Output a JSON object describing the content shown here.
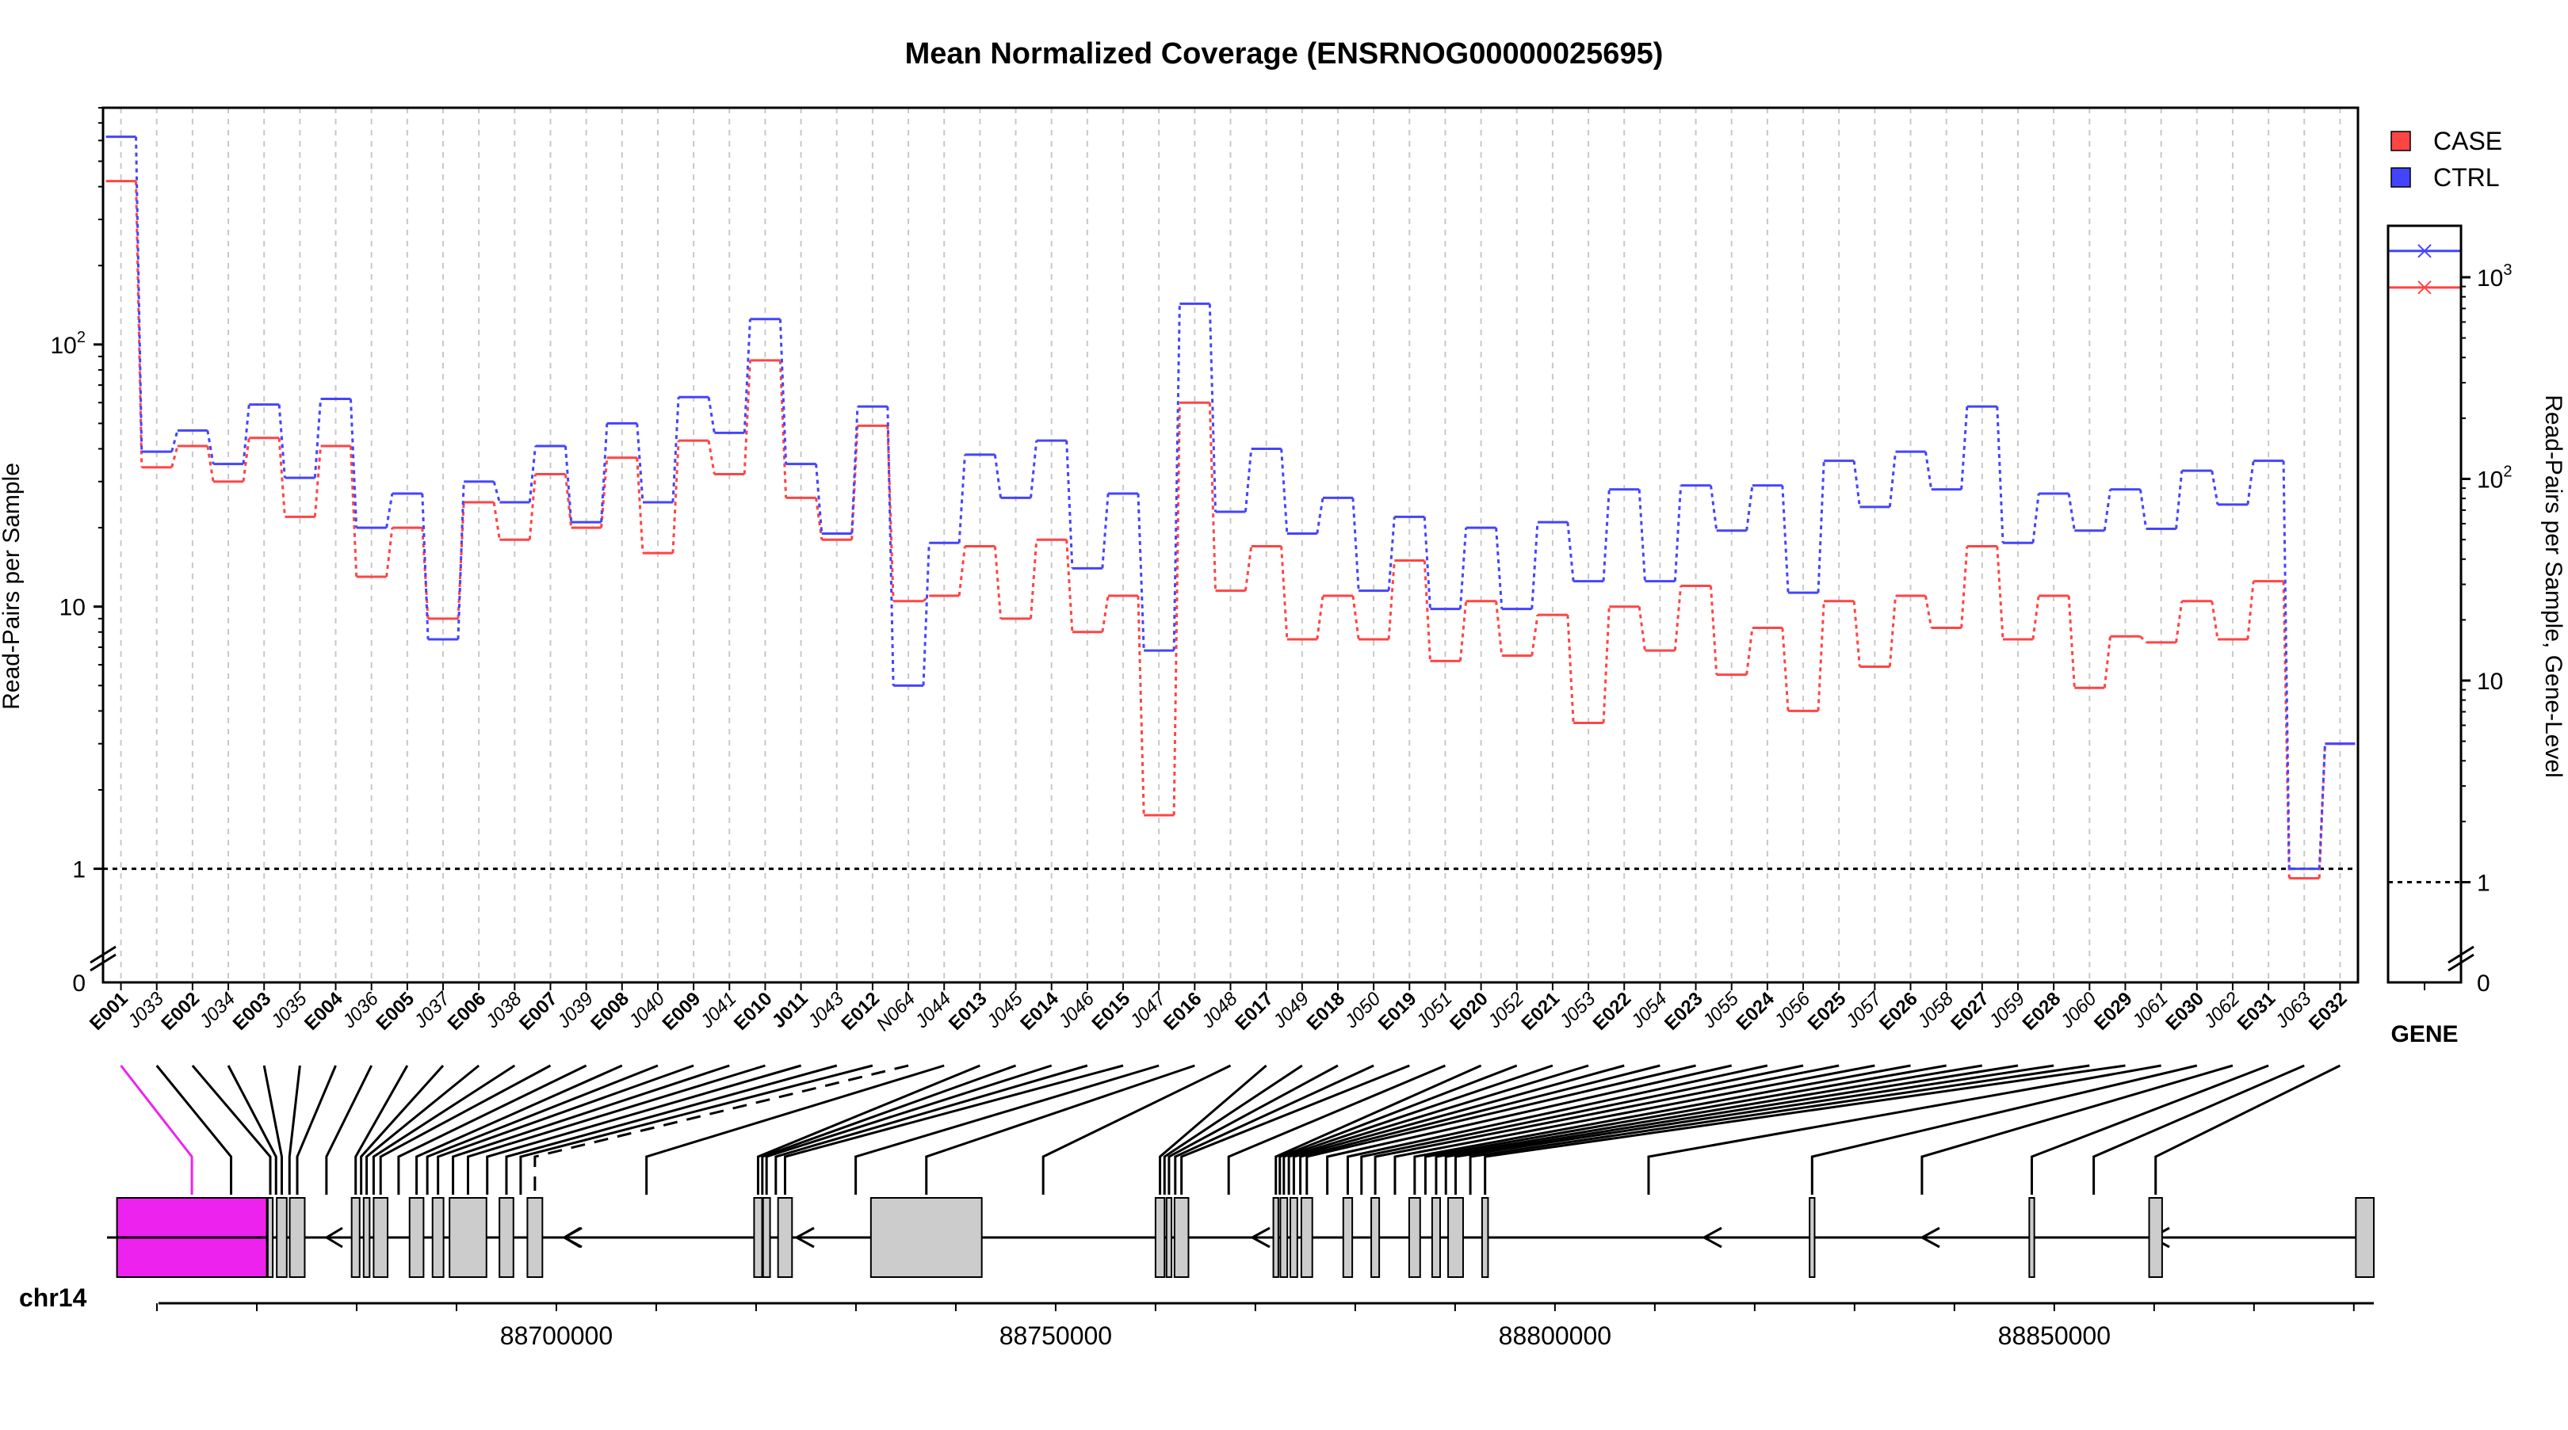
{
  "chart_data": {
    "type": "line",
    "title": "Mean Normalized Coverage (ENSRNOG00000025695)",
    "ylabel": "Read-Pairs per Sample",
    "ylabel_right": "Read-Pairs per Sample, Gene-Level",
    "yscale": "log",
    "ylim": [
      0.6,
      800
    ],
    "y_ticks": [
      {
        "value": 1,
        "label": "1"
      },
      {
        "value": 10,
        "label": "10"
      },
      {
        "value": 100,
        "label": "10",
        "sup": "2"
      }
    ],
    "zero_label": "0",
    "legend": {
      "position": "top-right",
      "entries": [
        {
          "name": "CASE",
          "color": "#ff4444"
        },
        {
          "name": "CTRL",
          "color": "#4444ff"
        }
      ]
    },
    "reference_line": 1,
    "categories": [
      "E001",
      "J033",
      "E002",
      "J034",
      "E003",
      "J035",
      "E004",
      "J036",
      "E005",
      "J037",
      "E006",
      "J038",
      "E007",
      "J039",
      "E008",
      "J040",
      "E009",
      "J041",
      "E010",
      "J011",
      "J043",
      "E012",
      "N064",
      "J044",
      "E013",
      "J045",
      "E014",
      "J046",
      "E015",
      "J047",
      "E016",
      "J048",
      "E017",
      "J049",
      "E018",
      "J050",
      "E019",
      "J051",
      "E020",
      "J052",
      "E021",
      "J053",
      "E022",
      "J054",
      "E023",
      "J055",
      "E024",
      "J056",
      "E025",
      "J057",
      "E026",
      "J058",
      "E027",
      "J059",
      "E028",
      "J060",
      "E029",
      "J061",
      "E030",
      "J062",
      "E031",
      "J063",
      "E032"
    ],
    "category_bold": [
      true,
      false,
      true,
      false,
      true,
      false,
      true,
      false,
      true,
      false,
      true,
      false,
      true,
      false,
      true,
      false,
      true,
      false,
      true,
      true,
      false,
      true,
      false,
      false,
      true,
      false,
      true,
      false,
      true,
      false,
      true,
      false,
      true,
      false,
      true,
      false,
      true,
      false,
      true,
      false,
      true,
      false,
      true,
      false,
      true,
      false,
      true,
      false,
      true,
      false,
      true,
      false,
      true,
      false,
      true,
      false,
      true,
      false,
      true,
      false,
      true,
      false,
      true
    ],
    "series": [
      {
        "name": "CASE",
        "color": "#ff4444",
        "values": [
          420,
          34,
          41,
          30,
          44,
          22,
          41,
          13,
          20,
          9,
          25,
          18,
          32,
          20,
          37,
          16,
          43,
          32,
          87,
          26,
          18,
          49,
          10.5,
          11,
          17,
          9,
          18,
          8,
          11,
          1.6,
          60,
          11.5,
          17,
          7.5,
          11,
          7.5,
          15,
          6.2,
          10.5,
          6.5,
          9.3,
          3.6,
          10,
          6.8,
          12,
          5.5,
          8.3,
          4,
          10.5,
          5.9,
          11,
          8.3,
          17,
          7.5,
          11,
          4.9,
          7.7,
          7.3,
          10.5,
          7.5,
          12.5,
          0.92,
          3
        ]
      },
      {
        "name": "CTRL",
        "color": "#4444ff",
        "values": [
          620,
          39,
          47,
          35,
          59,
          31,
          62,
          20,
          27,
          7.5,
          30,
          25,
          41,
          21,
          50,
          25,
          63,
          46,
          125,
          35,
          19,
          58,
          5,
          17.5,
          38,
          26,
          43,
          14,
          27,
          6.8,
          143,
          23,
          40,
          19,
          26,
          11.5,
          22,
          9.8,
          20,
          9.8,
          21,
          12.5,
          28,
          12.5,
          29,
          19.5,
          29,
          11.3,
          36,
          24,
          39,
          28,
          58,
          17.5,
          27,
          19.5,
          28,
          19.8,
          33,
          24.5,
          36,
          1,
          3
        ]
      }
    ],
    "gene_panel": {
      "label": "GENE",
      "ylim": [
        0.6,
        1800
      ],
      "y_ticks": [
        {
          "value": 1,
          "label": "1"
        },
        {
          "value": 10,
          "label": "10"
        },
        {
          "value": 100,
          "label": "10",
          "sup": "2"
        },
        {
          "value": 1000,
          "label": "10",
          "sup": "3"
        }
      ],
      "zero_label": "0",
      "values": [
        {
          "name": "CASE",
          "value": 890
        },
        {
          "name": "CTRL",
          "value": 1350
        }
      ]
    },
    "genome": {
      "chromosome": "chr14",
      "axis_range": [
        88655000,
        88882000
      ],
      "tick_labels": [
        88700000,
        88750000,
        88800000,
        88850000
      ],
      "exons": [
        [
          88656000,
          88671000,
          true
        ],
        [
          88671100,
          88671600,
          false
        ],
        [
          88672000,
          88673000,
          false
        ],
        [
          88673300,
          88674800,
          false
        ],
        [
          88679500,
          88680300,
          false
        ],
        [
          88680700,
          88681300,
          false
        ],
        [
          88681700,
          88683100,
          false
        ],
        [
          88685300,
          88686700,
          false
        ],
        [
          88687600,
          88688700,
          false
        ],
        [
          88689300,
          88693000,
          false
        ],
        [
          88694300,
          88695700,
          false
        ],
        [
          88697100,
          88698600,
          false
        ],
        [
          88719800,
          88720600,
          false
        ],
        [
          88720700,
          88721400,
          false
        ],
        [
          88722200,
          88723600,
          false
        ],
        [
          88731500,
          88742600,
          false
        ],
        [
          88760000,
          88760900,
          false
        ],
        [
          88761100,
          88761600,
          false
        ],
        [
          88761900,
          88763300,
          false
        ],
        [
          88771800,
          88772300,
          false
        ],
        [
          88772500,
          88773200,
          false
        ],
        [
          88773500,
          88774200,
          false
        ],
        [
          88774600,
          88775700,
          false
        ],
        [
          88778800,
          88779700,
          false
        ],
        [
          88781600,
          88782400,
          false
        ],
        [
          88785400,
          88786500,
          false
        ],
        [
          88787700,
          88788500,
          false
        ],
        [
          88789300,
          88790800,
          false
        ],
        [
          88792700,
          88793300,
          false
        ],
        [
          88825500,
          88826000,
          false
        ],
        [
          88847500,
          88848000,
          false
        ],
        [
          88859500,
          88860800,
          false
        ],
        [
          88880200,
          88882000,
          false
        ]
      ]
    }
  }
}
